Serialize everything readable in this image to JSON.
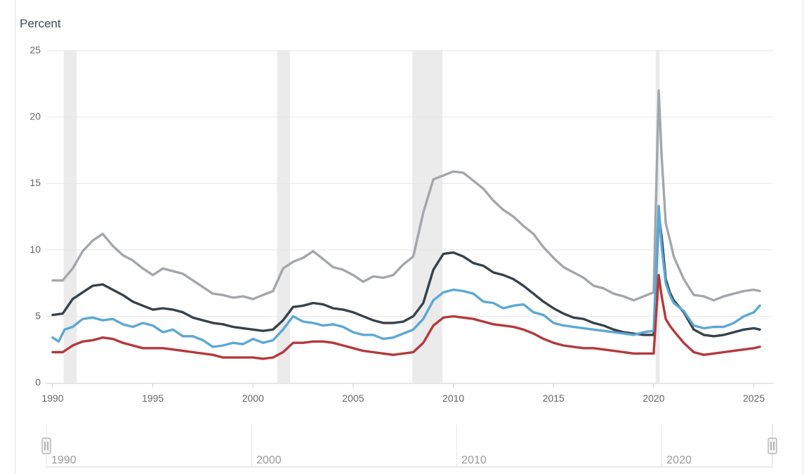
{
  "chart_data": {
    "type": "line",
    "ylabel": "Percent",
    "xlim": [
      1990,
      2025.4
    ],
    "ylim": [
      0,
      25
    ],
    "y_ticks": [
      0,
      5,
      10,
      15,
      20,
      25
    ],
    "x_ticks": [
      1990,
      1995,
      2000,
      2005,
      2010,
      2015,
      2020,
      2025
    ],
    "grid": true,
    "recessions": [
      [
        1990.55,
        1991.2
      ],
      [
        2001.2,
        2001.85
      ],
      [
        2007.95,
        2009.45
      ],
      [
        2020.1,
        2020.3
      ]
    ],
    "navigator_labels": [
      "1990",
      "2000",
      "2010",
      "2020"
    ],
    "series": [
      {
        "color": "#a3a6ab",
        "x": [
          1990,
          1990.5,
          1991,
          1991.5,
          1992,
          1992.5,
          1993,
          1993.5,
          1994,
          1994.5,
          1995,
          1995.5,
          1996,
          1996.5,
          1997,
          1997.5,
          1998,
          1998.5,
          1999,
          1999.5,
          2000,
          2000.5,
          2001,
          2001.5,
          2002,
          2002.5,
          2003,
          2003.5,
          2004,
          2004.5,
          2005,
          2005.5,
          2006,
          2006.5,
          2007,
          2007.5,
          2008,
          2008.5,
          2009,
          2009.5,
          2010,
          2010.5,
          2011,
          2011.5,
          2012,
          2012.5,
          2013,
          2013.5,
          2014,
          2014.5,
          2015,
          2015.5,
          2016,
          2016.5,
          2017,
          2017.5,
          2018,
          2018.5,
          2019,
          2019.5,
          2020,
          2020.25,
          2020.4,
          2020.6,
          2020.8,
          2021,
          2021.5,
          2022,
          2022.5,
          2023,
          2023.5,
          2024,
          2024.5,
          2025,
          2025.3
        ],
        "values": [
          7.7,
          7.7,
          8.6,
          9.9,
          10.7,
          11.2,
          10.3,
          9.6,
          9.2,
          8.6,
          8.1,
          8.6,
          8.4,
          8.2,
          7.7,
          7.2,
          6.7,
          6.6,
          6.4,
          6.5,
          6.3,
          6.6,
          6.9,
          8.6,
          9.1,
          9.4,
          9.9,
          9.3,
          8.7,
          8.5,
          8.1,
          7.6,
          8.0,
          7.9,
          8.1,
          8.9,
          9.5,
          12.8,
          15.3,
          15.6,
          15.9,
          15.8,
          15.2,
          14.6,
          13.7,
          13.0,
          12.5,
          11.8,
          11.2,
          10.2,
          9.4,
          8.7,
          8.3,
          7.9,
          7.3,
          7.1,
          6.7,
          6.5,
          6.2,
          6.5,
          6.8,
          22.0,
          17.0,
          12.0,
          10.8,
          9.5,
          7.8,
          6.6,
          6.5,
          6.2,
          6.5,
          6.7,
          6.9,
          7.0,
          6.9
        ]
      },
      {
        "color": "#37414b",
        "x": [
          1990,
          1990.5,
          1991,
          1991.5,
          1992,
          1992.5,
          1993,
          1993.5,
          1994,
          1994.5,
          1995,
          1995.5,
          1996,
          1996.5,
          1997,
          1997.5,
          1998,
          1998.5,
          1999,
          1999.5,
          2000,
          2000.5,
          2001,
          2001.5,
          2002,
          2002.5,
          2003,
          2003.5,
          2004,
          2004.5,
          2005,
          2005.5,
          2006,
          2006.5,
          2007,
          2007.5,
          2008,
          2008.5,
          2009,
          2009.5,
          2010,
          2010.5,
          2011,
          2011.5,
          2012,
          2012.5,
          2013,
          2013.5,
          2014,
          2014.5,
          2015,
          2015.5,
          2016,
          2016.5,
          2017,
          2017.5,
          2018,
          2018.5,
          2019,
          2019.5,
          2020,
          2020.25,
          2020.4,
          2020.6,
          2020.8,
          2021,
          2021.5,
          2022,
          2022.5,
          2023,
          2023.5,
          2024,
          2024.5,
          2025,
          2025.3
        ],
        "values": [
          5.1,
          5.2,
          6.3,
          6.8,
          7.3,
          7.4,
          7.0,
          6.6,
          6.1,
          5.8,
          5.5,
          5.6,
          5.5,
          5.3,
          4.9,
          4.7,
          4.5,
          4.4,
          4.2,
          4.1,
          4.0,
          3.9,
          4.0,
          4.7,
          5.7,
          5.8,
          6.0,
          5.9,
          5.6,
          5.5,
          5.3,
          5.0,
          4.7,
          4.5,
          4.5,
          4.6,
          5.0,
          6.0,
          8.5,
          9.7,
          9.8,
          9.5,
          9.0,
          8.8,
          8.3,
          8.1,
          7.8,
          7.3,
          6.7,
          6.1,
          5.6,
          5.2,
          4.9,
          4.8,
          4.5,
          4.3,
          4.0,
          3.8,
          3.7,
          3.6,
          3.6,
          12.7,
          11.0,
          7.8,
          6.8,
          6.2,
          5.3,
          4.0,
          3.6,
          3.5,
          3.6,
          3.8,
          4.0,
          4.1,
          4.0
        ]
      },
      {
        "color": "#5ba8d6",
        "x": [
          1990,
          1990.3,
          1990.6,
          1991,
          1991.5,
          1992,
          1992.5,
          1993,
          1993.5,
          1994,
          1994.5,
          1995,
          1995.5,
          1996,
          1996.5,
          1997,
          1997.5,
          1998,
          1998.5,
          1999,
          1999.5,
          2000,
          2000.5,
          2001,
          2001.5,
          2002,
          2002.5,
          2003,
          2003.5,
          2004,
          2004.5,
          2005,
          2005.5,
          2006,
          2006.5,
          2007,
          2007.5,
          2008,
          2008.5,
          2009,
          2009.5,
          2010,
          2010.5,
          2011,
          2011.5,
          2012,
          2012.5,
          2013,
          2013.5,
          2014,
          2014.5,
          2015,
          2015.5,
          2016,
          2016.5,
          2017,
          2017.5,
          2018,
          2018.5,
          2019,
          2019.5,
          2020,
          2020.25,
          2020.4,
          2020.6,
          2020.8,
          2021,
          2021.5,
          2022,
          2022.5,
          2023,
          2023.5,
          2024,
          2024.5,
          2025,
          2025.3
        ],
        "values": [
          3.4,
          3.1,
          4.0,
          4.2,
          4.8,
          4.9,
          4.7,
          4.8,
          4.4,
          4.2,
          4.5,
          4.3,
          3.8,
          4.0,
          3.5,
          3.5,
          3.2,
          2.7,
          2.8,
          3.0,
          2.9,
          3.3,
          3.0,
          3.2,
          4.0,
          5.0,
          4.6,
          4.5,
          4.3,
          4.4,
          4.2,
          3.8,
          3.6,
          3.6,
          3.3,
          3.4,
          3.7,
          4.0,
          4.8,
          6.2,
          6.8,
          7.0,
          6.9,
          6.7,
          6.1,
          6.0,
          5.6,
          5.8,
          5.9,
          5.3,
          5.1,
          4.5,
          4.3,
          4.2,
          4.1,
          4.0,
          3.9,
          3.8,
          3.7,
          3.6,
          3.8,
          3.9,
          13.3,
          10.2,
          7.5,
          6.6,
          6.0,
          5.4,
          4.3,
          4.1,
          4.2,
          4.2,
          4.5,
          5.0,
          5.3,
          5.8
        ]
      },
      {
        "color": "#b5393b",
        "x": [
          1990,
          1990.5,
          1991,
          1991.5,
          1992,
          1992.5,
          1993,
          1993.5,
          1994,
          1994.5,
          1995,
          1995.5,
          1996,
          1996.5,
          1997,
          1997.5,
          1998,
          1998.5,
          1999,
          1999.5,
          2000,
          2000.5,
          2001,
          2001.5,
          2002,
          2002.5,
          2003,
          2003.5,
          2004,
          2004.5,
          2005,
          2005.5,
          2006,
          2006.5,
          2007,
          2007.5,
          2008,
          2008.5,
          2009,
          2009.5,
          2010,
          2010.5,
          2011,
          2011.5,
          2012,
          2012.5,
          2013,
          2013.5,
          2014,
          2014.5,
          2015,
          2015.5,
          2016,
          2016.5,
          2017,
          2017.5,
          2018,
          2018.5,
          2019,
          2019.5,
          2020,
          2020.25,
          2020.4,
          2020.6,
          2020.8,
          2021,
          2021.5,
          2022,
          2022.5,
          2023,
          2023.5,
          2024,
          2024.5,
          2025,
          2025.3
        ],
        "values": [
          2.3,
          2.3,
          2.8,
          3.1,
          3.2,
          3.4,
          3.3,
          3.0,
          2.8,
          2.6,
          2.6,
          2.6,
          2.5,
          2.4,
          2.3,
          2.2,
          2.1,
          1.9,
          1.9,
          1.9,
          1.9,
          1.8,
          1.9,
          2.3,
          3.0,
          3.0,
          3.1,
          3.1,
          3.0,
          2.8,
          2.6,
          2.4,
          2.3,
          2.2,
          2.1,
          2.2,
          2.3,
          3.0,
          4.3,
          4.9,
          5.0,
          4.9,
          4.8,
          4.6,
          4.4,
          4.3,
          4.2,
          4.0,
          3.7,
          3.3,
          3.0,
          2.8,
          2.7,
          2.6,
          2.6,
          2.5,
          2.4,
          2.3,
          2.2,
          2.2,
          2.2,
          8.1,
          6.5,
          4.8,
          4.3,
          3.9,
          3.0,
          2.3,
          2.1,
          2.2,
          2.3,
          2.4,
          2.5,
          2.6,
          2.7
        ]
      }
    ]
  }
}
